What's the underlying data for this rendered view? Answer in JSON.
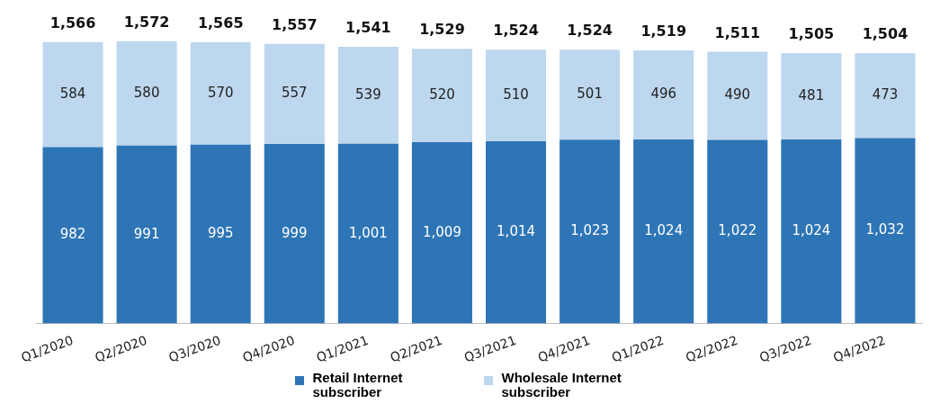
{
  "chart_data": {
    "type": "bar",
    "stacked": true,
    "legend": "bottom",
    "grid": false,
    "categories": [
      "Q1/2020",
      "Q2/2020",
      "Q3/2020",
      "Q4/2020",
      "Q1/2021",
      "Q2/2021",
      "Q3/2021",
      "Q4/2021",
      "Q1/2022",
      "Q2/2022",
      "Q3/2022",
      "Q4/2022"
    ],
    "series": [
      {
        "name": "Retail Internet subscriber",
        "color": "#2e75b6",
        "values": [
          982,
          991,
          995,
          999,
          1001,
          1009,
          1014,
          1023,
          1024,
          1022,
          1024,
          1032
        ],
        "value_labels": [
          "982",
          "991",
          "995",
          "999",
          "1,001",
          "1,009",
          "1,014",
          "1,023",
          "1,024",
          "1,022",
          "1,024",
          "1,032"
        ]
      },
      {
        "name": "Wholesale Internet subscriber",
        "color": "#bdd7ee",
        "values": [
          584,
          580,
          570,
          557,
          539,
          520,
          510,
          501,
          496,
          490,
          481,
          473
        ],
        "value_labels": [
          "584",
          "580",
          "570",
          "557",
          "539",
          "520",
          "510",
          "501",
          "496",
          "490",
          "481",
          "473"
        ]
      }
    ],
    "totals": [
      "1,566",
      "1,572",
      "1,565",
      "1,557",
      "1,541",
      "1,529",
      "1,524",
      "1,524",
      "1,519",
      "1,511",
      "1,505",
      "1,504"
    ]
  }
}
